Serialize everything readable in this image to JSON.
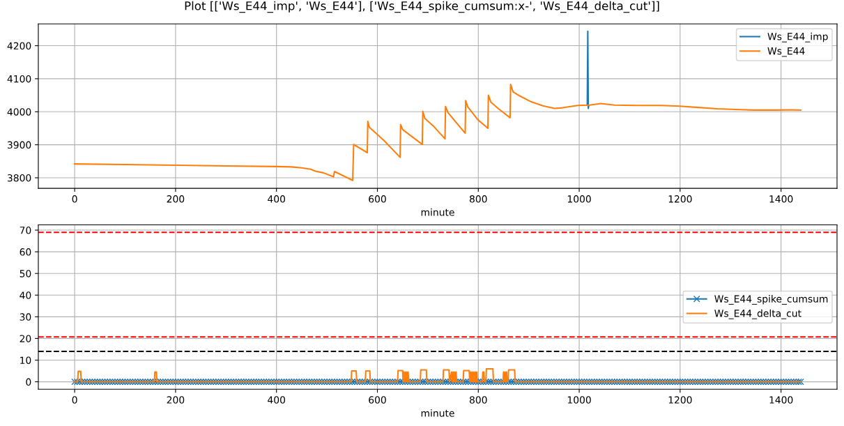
{
  "chart_data": [
    {
      "type": "line",
      "title": "Plot [['Ws_E44_imp', 'Ws_E44'], ['Ws_E44_spike_cumsum:x-', 'Ws_E44_delta_cut']]",
      "xlabel": "minute",
      "xlim": [
        -72,
        1511
      ],
      "xticks": [
        0,
        200,
        400,
        600,
        800,
        1000,
        1200,
        1400
      ],
      "ylim": [
        3768,
        4266
      ],
      "yticks": [
        3800,
        3900,
        4000,
        4100,
        4200
      ],
      "grid": true,
      "legend": "top right",
      "series": [
        {
          "name": "Ws_E44_imp",
          "color": "#1f77b4",
          "x": [
            1016,
            1017,
            1018,
            1019
          ],
          "values": [
            4020,
            4244,
            4010,
            4020
          ]
        },
        {
          "name": "Ws_E44",
          "color": "#ff7f0e",
          "x": [
            0,
            100,
            200,
            300,
            400,
            430,
            450,
            468,
            477,
            493,
            513,
            515,
            542,
            551,
            553,
            580,
            581,
            584,
            613,
            645,
            646,
            650,
            689,
            690,
            694,
            712,
            734,
            735,
            740,
            774,
            775,
            779,
            799,
            819,
            820,
            825,
            840,
            863,
            864,
            869,
            882,
            905,
            928,
            951,
            967,
            997,
            1020,
            1043,
            1070,
            1116,
            1162,
            1199,
            1236,
            1273,
            1310,
            1346,
            1392,
            1420,
            1439
          ],
          "values": [
            3842,
            3840,
            3838,
            3836,
            3834,
            3833,
            3830,
            3826,
            3820,
            3815,
            3803,
            3819,
            3799,
            3792,
            3901,
            3876,
            3971,
            3953,
            3913,
            3862,
            3961,
            3946,
            3901,
            4001,
            3980,
            3955,
            3918,
            4016,
            3997,
            3935,
            4034,
            4015,
            3976,
            3950,
            4050,
            4029,
            4009,
            3982,
            4083,
            4060,
            4048,
            4030,
            4018,
            4010,
            4012,
            4019,
            4020,
            4025,
            4020,
            4019,
            4019,
            4017,
            4013,
            4009,
            4007,
            4005,
            4005,
            4006,
            4005
          ]
        }
      ]
    },
    {
      "type": "line",
      "xlabel": "minute",
      "xlim": [
        -72,
        1511
      ],
      "xticks": [
        0,
        200,
        400,
        600,
        800,
        1000,
        1200,
        1400
      ],
      "ylim": [
        -3.45,
        72.45
      ],
      "yticks": [
        0,
        10,
        20,
        30,
        40,
        50,
        60,
        70
      ],
      "grid": true,
      "legend": "right",
      "ref_lines": [
        {
          "axis": "y",
          "value": 69,
          "color": "#ff0000",
          "line_style": "dashed"
        },
        {
          "axis": "y",
          "value": 20.7,
          "color": "#ff0000",
          "line_style": "dashed"
        },
        {
          "axis": "y",
          "value": 14,
          "color": "#000000",
          "line_style": "dashed"
        }
      ],
      "series": [
        {
          "name": "Ws_E44_spike_cumsum",
          "color": "#1f77b4",
          "marker": "cross",
          "x": [
            0,
            5,
            10,
            15,
            20,
            25,
            30,
            35,
            40,
            45,
            50,
            55,
            60,
            65,
            70,
            75,
            80,
            85,
            90,
            95,
            100,
            105,
            110,
            115,
            120,
            125,
            130,
            135,
            140,
            145,
            150,
            155,
            160,
            165,
            170,
            175,
            180,
            185,
            190,
            195,
            200,
            205,
            210,
            215,
            220,
            225,
            230,
            235,
            240,
            245,
            250,
            255,
            260,
            265,
            270,
            275,
            280,
            285,
            290,
            295,
            300,
            305,
            310,
            315,
            320,
            325,
            330,
            335,
            340,
            345,
            350,
            355,
            360,
            365,
            370,
            375,
            380,
            385,
            390,
            395,
            400,
            405,
            410,
            415,
            420,
            425,
            430,
            435,
            440,
            445,
            450,
            455,
            460,
            465,
            470,
            475,
            480,
            485,
            490,
            495,
            500,
            505,
            510,
            515,
            520,
            525,
            530,
            535,
            540,
            545,
            550,
            555,
            560,
            565,
            570,
            575,
            580,
            585,
            590,
            595,
            600,
            605,
            610,
            615,
            620,
            625,
            630,
            635,
            640,
            645,
            650,
            655,
            660,
            665,
            670,
            675,
            680,
            685,
            690,
            695,
            700,
            705,
            710,
            715,
            720,
            725,
            730,
            735,
            740,
            745,
            750,
            755,
            760,
            765,
            770,
            775,
            780,
            785,
            790,
            795,
            800,
            805,
            810,
            815,
            820,
            825,
            830,
            835,
            840,
            845,
            850,
            855,
            860,
            865,
            870,
            875,
            880,
            885,
            890,
            895,
            900,
            905,
            910,
            915,
            920,
            925,
            930,
            935,
            940,
            945,
            950,
            955,
            960,
            965,
            970,
            975,
            980,
            985,
            990,
            995,
            1000,
            1005,
            1010,
            1015,
            1020,
            1025,
            1030,
            1035,
            1040,
            1045,
            1050,
            1055,
            1060,
            1065,
            1070,
            1075,
            1080,
            1085,
            1090,
            1095,
            1100,
            1105,
            1110,
            1115,
            1120,
            1125,
            1130,
            1135,
            1140,
            1145,
            1150,
            1155,
            1160,
            1165,
            1170,
            1175,
            1180,
            1185,
            1190,
            1195,
            1200,
            1205,
            1210,
            1215,
            1220,
            1225,
            1230,
            1235,
            1240,
            1245,
            1250,
            1255,
            1260,
            1265,
            1270,
            1275,
            1280,
            1285,
            1290,
            1295,
            1300,
            1305,
            1310,
            1315,
            1320,
            1325,
            1330,
            1335,
            1340,
            1345,
            1350,
            1355,
            1360,
            1365,
            1370,
            1375,
            1380,
            1385,
            1390,
            1395,
            1400,
            1405,
            1410,
            1415,
            1420,
            1425,
            1430,
            1435,
            1439
          ],
          "values": [
            0,
            0,
            0,
            0,
            0,
            0,
            0,
            0,
            0,
            0,
            0,
            0,
            0,
            0,
            0,
            0,
            0,
            0,
            0,
            0,
            0,
            0,
            0,
            0,
            0,
            0,
            0,
            0,
            0,
            0,
            0,
            0,
            0,
            0,
            0,
            0,
            0,
            0,
            0,
            0,
            0,
            0,
            0,
            0,
            0,
            0,
            0,
            0,
            0,
            0,
            0,
            0,
            0,
            0,
            0,
            0,
            0,
            0,
            0,
            0,
            0,
            0,
            0,
            0,
            0,
            0,
            0,
            0,
            0,
            0,
            0,
            0,
            0,
            0,
            0,
            0,
            0,
            0,
            0,
            0,
            0,
            0,
            0,
            0,
            0,
            0,
            0,
            0,
            0,
            0,
            0,
            0,
            0,
            0,
            0,
            0,
            0,
            0,
            0,
            0,
            0,
            0,
            0,
            0,
            0,
            0,
            0,
            0,
            0,
            0,
            0,
            0,
            0,
            0,
            0,
            0,
            0,
            0,
            0,
            0,
            0,
            0,
            0,
            0,
            0,
            0,
            0,
            0,
            0,
            0,
            0,
            0,
            0,
            0,
            0,
            0,
            0,
            0,
            0,
            0,
            0,
            0,
            0,
            0,
            0,
            0,
            0,
            0,
            0,
            0,
            0,
            0,
            0,
            0,
            0,
            0,
            0,
            0,
            0,
            0,
            0,
            0,
            0,
            0,
            0,
            0,
            0,
            0,
            0,
            0,
            0,
            0,
            0,
            0,
            0,
            0,
            0,
            0,
            0,
            0,
            0,
            0,
            0,
            0,
            0,
            0,
            0,
            0,
            0,
            0,
            0,
            0,
            0,
            0,
            0,
            0,
            0,
            0,
            0,
            0,
            0,
            0,
            0,
            0,
            0,
            0,
            0,
            0,
            0,
            0,
            0,
            0,
            0,
            0,
            0,
            0,
            0,
            0,
            0,
            0,
            0,
            0,
            0,
            0,
            0,
            0,
            0,
            0,
            0,
            0,
            0,
            0,
            0,
            0,
            0,
            0,
            0,
            0,
            0,
            0,
            0,
            0,
            0,
            0,
            0,
            0,
            0,
            0,
            0,
            0,
            0,
            0,
            0,
            0,
            0,
            0,
            0,
            0,
            0,
            0,
            0,
            0,
            0,
            0,
            0,
            0,
            0,
            0,
            0,
            0,
            0,
            0,
            0,
            0,
            0,
            0,
            0,
            0,
            0,
            0,
            0,
            0,
            0,
            0,
            0,
            0,
            0,
            0,
            0
          ]
        },
        {
          "name": "Ws_E44_delta_cut",
          "color": "#ff7f0e",
          "x": [
            0,
            6,
            7,
            12,
            13,
            158,
            159,
            162,
            163,
            548,
            549,
            558,
            559,
            576,
            577,
            585,
            586,
            640,
            641,
            650,
            651,
            652,
            653,
            655,
            656,
            658,
            659,
            661,
            662,
            685,
            686,
            697,
            698,
            730,
            731,
            742,
            743,
            747,
            748,
            750,
            751,
            753,
            754,
            756,
            757,
            770,
            771,
            782,
            783,
            785,
            786,
            788,
            789,
            791,
            792,
            794,
            795,
            797,
            798,
            808,
            809,
            811,
            812,
            815,
            816,
            829,
            830,
            849,
            850,
            851,
            853,
            854,
            856,
            857,
            859,
            860,
            872,
            873,
            1439
          ],
          "values": [
            0,
            0,
            4.8,
            4.8,
            0,
            0,
            4.5,
            4.5,
            0,
            0,
            5,
            5,
            0,
            0,
            5,
            5,
            0,
            0,
            5.2,
            5.2,
            0,
            4.5,
            0,
            4.5,
            0,
            4.5,
            0,
            4.5,
            0,
            0,
            5.5,
            5.5,
            0,
            0,
            5.5,
            5.5,
            0,
            4.5,
            0,
            4.5,
            0,
            4.5,
            0,
            4.5,
            0,
            0,
            5.2,
            5.2,
            0,
            4.5,
            0,
            4.5,
            0,
            4.5,
            0,
            4.5,
            0,
            4.5,
            0,
            0,
            4.5,
            4.5,
            0,
            0,
            6,
            6,
            0,
            0,
            4.5,
            0,
            4.5,
            0,
            4.5,
            0,
            0,
            5.5,
            5.5,
            0,
            0
          ]
        }
      ]
    }
  ]
}
